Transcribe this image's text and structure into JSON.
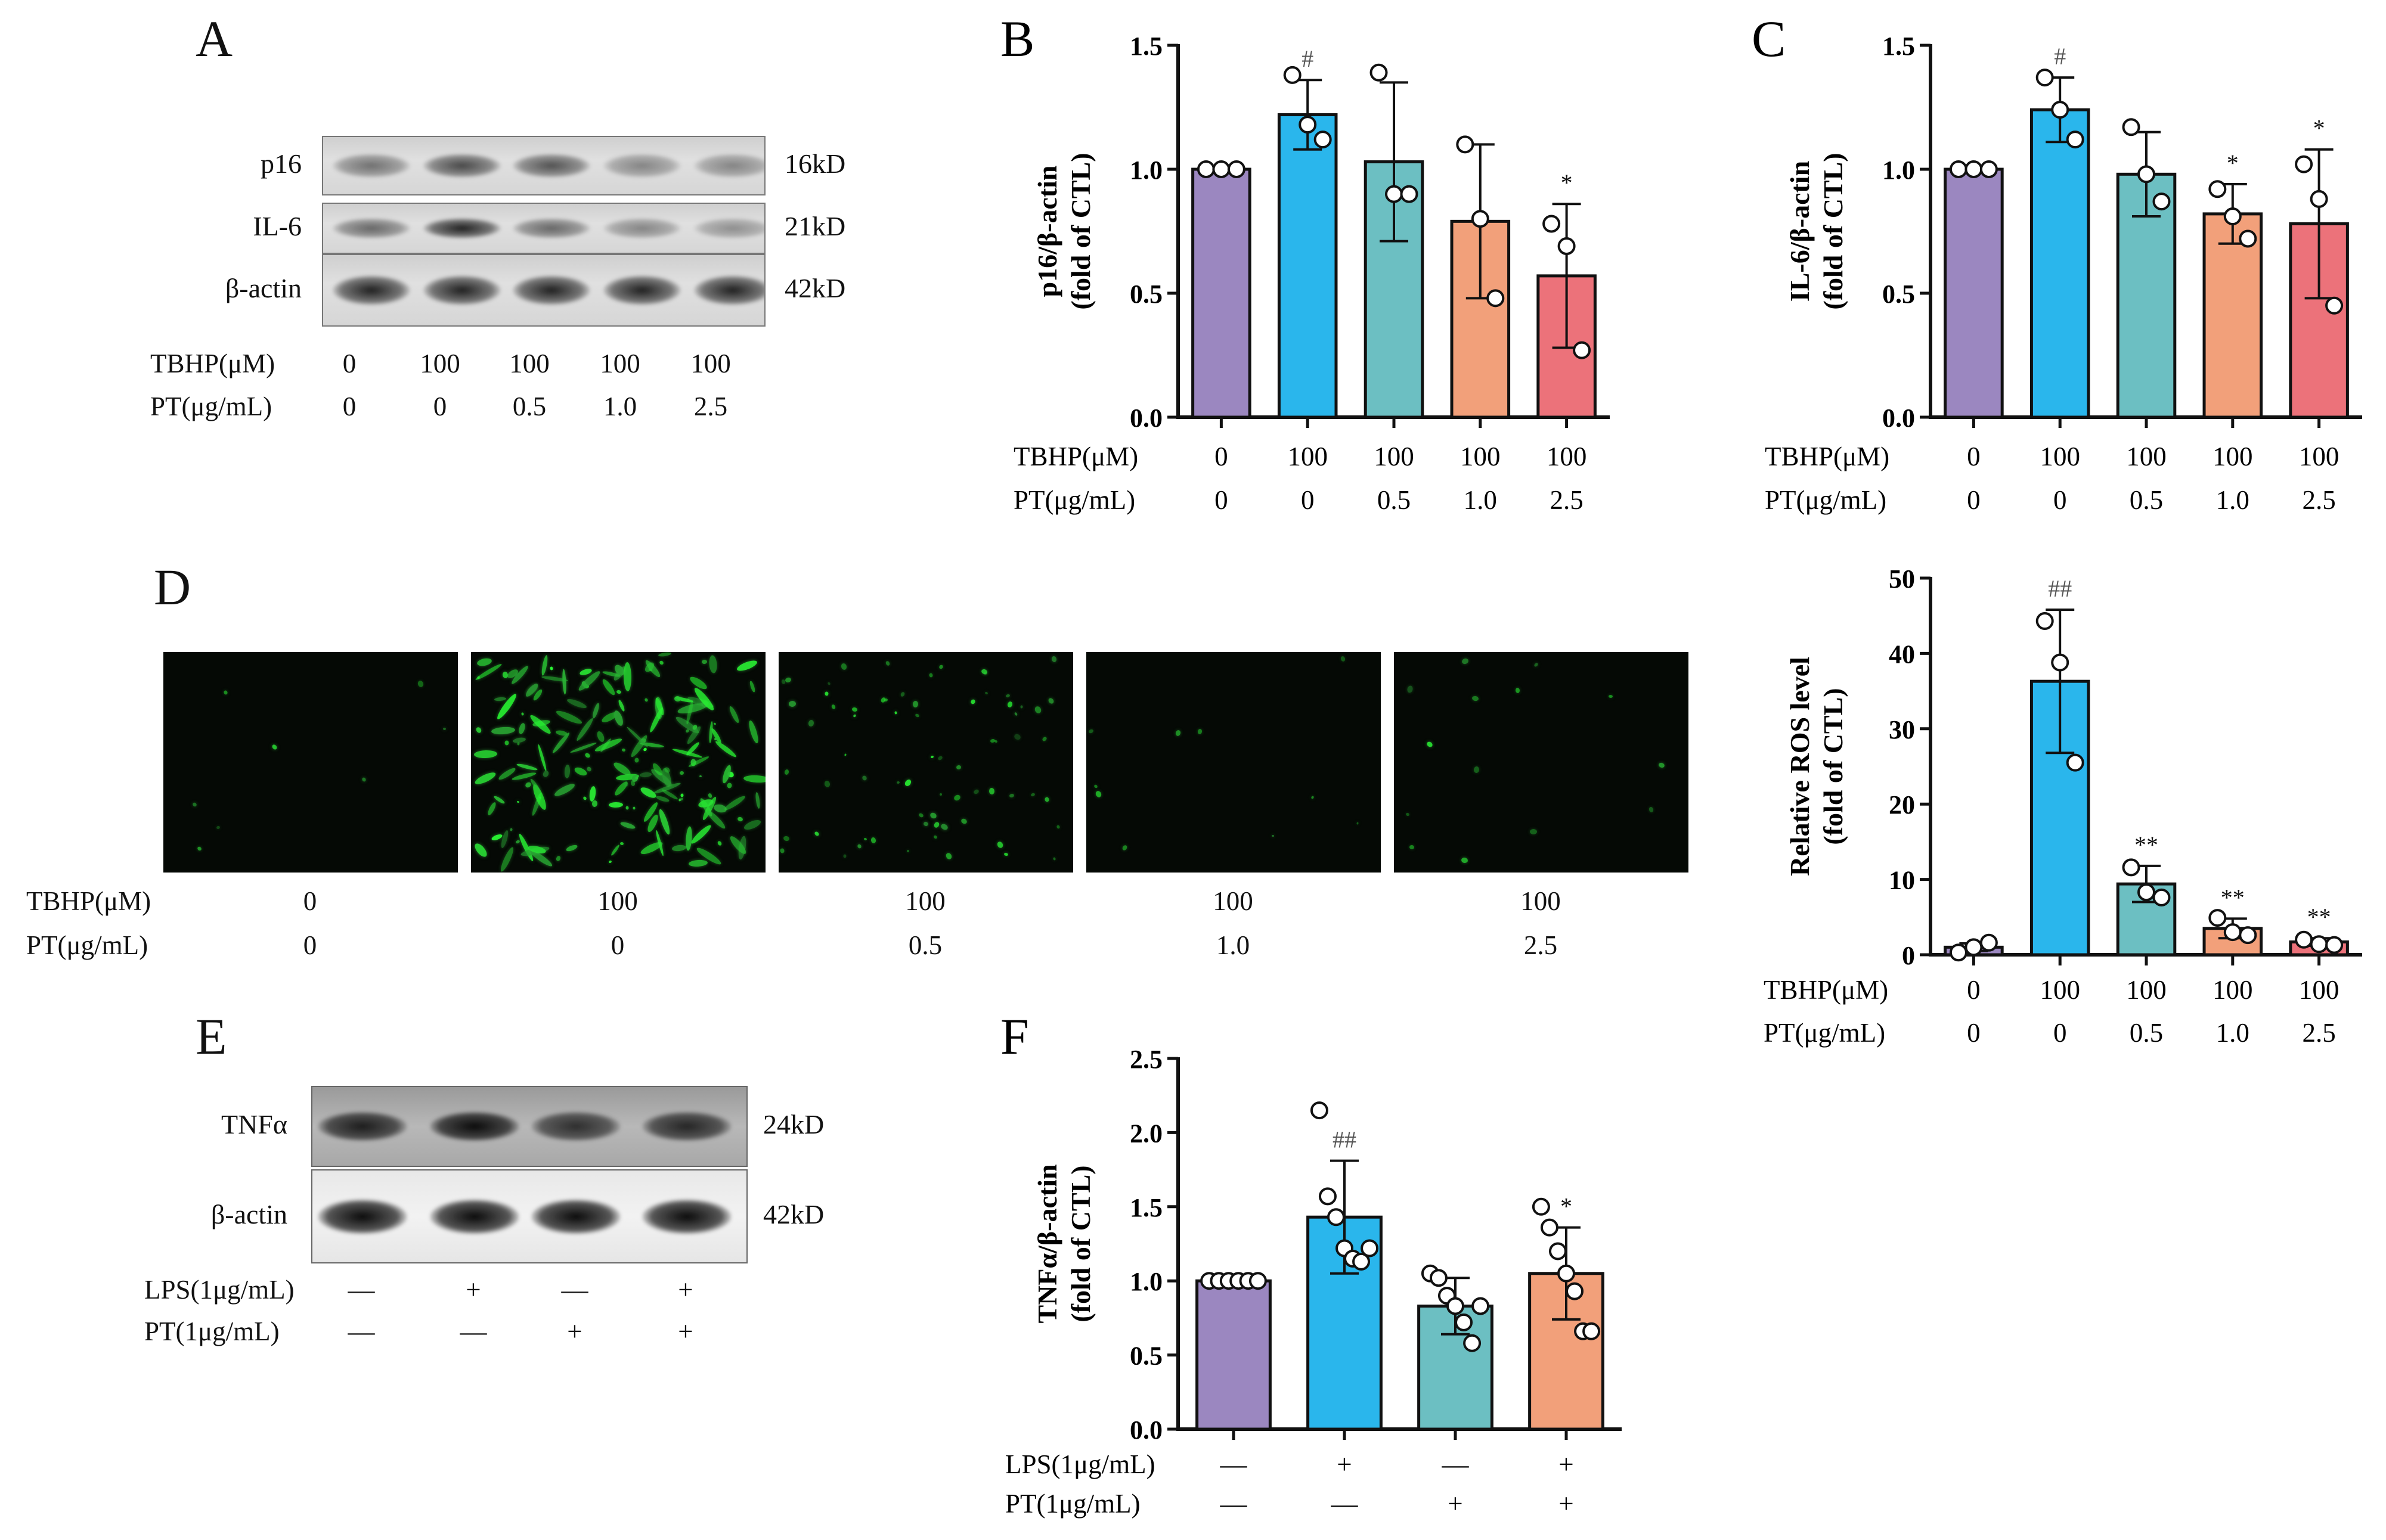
{
  "panels": {
    "A": {
      "label": "A",
      "blots": [
        {
          "name": "p16",
          "kd": "16kD"
        },
        {
          "name": "IL-6",
          "kd": "21kD"
        },
        {
          "name": "β-actin",
          "kd": "42kD"
        }
      ],
      "conditions": {
        "tbhp_label": "TBHP(μM)",
        "pt_label": "PT(μg/mL)",
        "tbhp": [
          "0",
          "100",
          "100",
          "100",
          "100"
        ],
        "pt": [
          "0",
          "0",
          "0.5",
          "1.0",
          "2.5"
        ]
      }
    },
    "D": {
      "label": "D",
      "conditions": {
        "tbhp_label": "TBHP(μM)",
        "pt_label": "PT(μg/mL)",
        "tbhp": [
          "0",
          "100",
          "100",
          "100",
          "100"
        ],
        "pt": [
          "0",
          "0",
          "0.5",
          "1.0",
          "2.5"
        ]
      }
    },
    "E": {
      "label": "E",
      "blots": [
        {
          "name": "TNFα",
          "kd": "24kD"
        },
        {
          "name": "β-actin",
          "kd": "42kD"
        }
      ],
      "conditions": {
        "lps_label": "LPS(1μg/mL)",
        "pt_label": "PT(1μg/mL)",
        "lps": [
          "—",
          "+",
          "—",
          "+"
        ],
        "pt": [
          "—",
          "—",
          "+",
          "+"
        ]
      }
    }
  },
  "colors": {
    "purple": "#9b87c0",
    "blue": "#2ab6ec",
    "teal": "#6cbfc2",
    "orange": "#f2a07a",
    "red": "#ec727a"
  },
  "chart_data": [
    {
      "id": "B",
      "panel_label": "B",
      "type": "bar",
      "ylabel": [
        "p16/β-actin",
        "(fold of CTL)"
      ],
      "ylim": [
        0,
        1.5
      ],
      "yticks": [
        "0.0",
        "0.5",
        "1.0",
        "1.5"
      ],
      "ytick_values": [
        0,
        0.5,
        1.0,
        1.5
      ],
      "row_labels": [
        "TBHP(μM)",
        "PT(μg/mL)"
      ],
      "rows": [
        [
          "0",
          "100",
          "100",
          "100",
          "100"
        ],
        [
          "0",
          "0",
          "0.5",
          "1.0",
          "2.5"
        ]
      ],
      "values": [
        1.0,
        1.22,
        1.03,
        0.79,
        0.57
      ],
      "errors": [
        0,
        0.14,
        0.32,
        0.31,
        0.29
      ],
      "points": [
        [
          1.0,
          1.0,
          1.0
        ],
        [
          1.38,
          1.18,
          1.12
        ],
        [
          1.39,
          0.9,
          0.9
        ],
        [
          1.1,
          0.8,
          0.48
        ],
        [
          0.78,
          0.69,
          0.27
        ]
      ],
      "marks": [
        "",
        "#",
        "",
        "",
        "*"
      ],
      "colors": [
        "#9b87c0",
        "#2ab6ec",
        "#6cbfc2",
        "#f2a07a",
        "#ec727a"
      ]
    },
    {
      "id": "C",
      "panel_label": "C",
      "type": "bar",
      "ylabel": [
        "IL-6/β-actin",
        "(fold of CTL)"
      ],
      "ylim": [
        0,
        1.5
      ],
      "yticks": [
        "0.0",
        "0.5",
        "1.0",
        "1.5"
      ],
      "ytick_values": [
        0,
        0.5,
        1.0,
        1.5
      ],
      "row_labels": [
        "TBHP(μM)",
        "PT(μg/mL)"
      ],
      "rows": [
        [
          "0",
          "100",
          "100",
          "100",
          "100"
        ],
        [
          "0",
          "0",
          "0.5",
          "1.0",
          "2.5"
        ]
      ],
      "values": [
        1.0,
        1.24,
        0.98,
        0.82,
        0.78
      ],
      "errors": [
        0,
        0.13,
        0.17,
        0.12,
        0.3
      ],
      "points": [
        [
          1.0,
          1.0,
          1.0
        ],
        [
          1.37,
          1.24,
          1.12
        ],
        [
          1.17,
          0.98,
          0.87
        ],
        [
          0.92,
          0.81,
          0.72
        ],
        [
          1.02,
          0.88,
          0.45
        ]
      ],
      "marks": [
        "",
        "#",
        "",
        "*",
        "*"
      ],
      "colors": [
        "#9b87c0",
        "#2ab6ec",
        "#6cbfc2",
        "#f2a07a",
        "#ec727a"
      ]
    },
    {
      "id": "ROS",
      "panel_label": "",
      "type": "bar",
      "ylabel": [
        "Relative ROS level",
        "(fold of CTL)"
      ],
      "ylim": [
        0,
        50
      ],
      "yticks": [
        "0",
        "10",
        "20",
        "30",
        "40",
        "50"
      ],
      "ytick_values": [
        0,
        10,
        20,
        30,
        40,
        50
      ],
      "row_labels": [
        "TBHP(μM)",
        "PT(μg/mL)"
      ],
      "rows": [
        [
          "0",
          "100",
          "100",
          "100",
          "100"
        ],
        [
          "0",
          "0",
          "0.5",
          "1.0",
          "2.5"
        ]
      ],
      "values": [
        1.0,
        36.3,
        9.4,
        3.5,
        1.7
      ],
      "errors": [
        0.5,
        9.5,
        2.4,
        1.3,
        0.5
      ],
      "points": [
        [
          0.3,
          1.0,
          1.6
        ],
        [
          44.3,
          38.8,
          25.5
        ],
        [
          11.6,
          8.3,
          7.6
        ],
        [
          4.9,
          3.0,
          2.6
        ],
        [
          2.0,
          1.4,
          1.3
        ]
      ],
      "marks": [
        "",
        "##",
        "**",
        "**",
        "**"
      ],
      "colors": [
        "#9b87c0",
        "#2ab6ec",
        "#6cbfc2",
        "#f2a07a",
        "#ec727a"
      ]
    },
    {
      "id": "F",
      "panel_label": "F",
      "type": "bar",
      "ylabel": [
        "TNFα/β-actin",
        "(fold of CTL)"
      ],
      "ylim": [
        0,
        2.5
      ],
      "yticks": [
        "0.0",
        "0.5",
        "1.0",
        "1.5",
        "2.0",
        "2.5"
      ],
      "ytick_values": [
        0,
        0.5,
        1.0,
        1.5,
        2.0,
        2.5
      ],
      "row_labels": [
        "LPS(1μg/mL)",
        "PT(1μg/mL)"
      ],
      "rows": [
        [
          "—",
          "+",
          "—",
          "+"
        ],
        [
          "—",
          "—",
          "+",
          "+"
        ]
      ],
      "values": [
        1.0,
        1.43,
        0.83,
        1.05
      ],
      "errors": [
        0,
        0.38,
        0.19,
        0.31
      ],
      "points": [
        [
          1.0,
          1.0,
          1.0,
          1.0,
          1.0,
          1.0
        ],
        [
          2.15,
          1.57,
          1.43,
          1.22,
          1.15,
          1.13,
          1.22
        ],
        [
          1.05,
          1.02,
          0.9,
          0.83,
          0.72,
          0.58,
          0.83
        ],
        [
          1.5,
          1.36,
          1.2,
          1.05,
          0.93,
          0.66,
          0.66
        ]
      ],
      "marks": [
        "",
        "##",
        "",
        "*"
      ],
      "colors": [
        "#9b87c0",
        "#2ab6ec",
        "#6cbfc2",
        "#f2a07a"
      ]
    }
  ]
}
